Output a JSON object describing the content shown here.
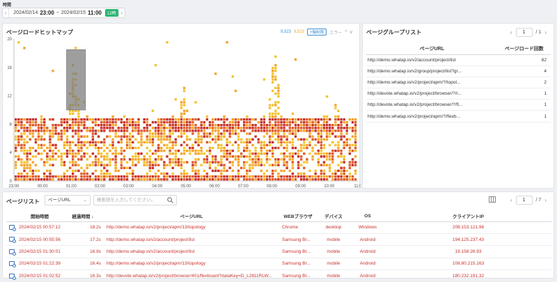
{
  "time": {
    "label": "時間",
    "start_date": "2024/02/14",
    "start_time": "23:00",
    "separator": "~",
    "end_date": "2024/02/15",
    "end_time": "11:00",
    "badge": "12時",
    "prev_icon": "chevron-left-icon",
    "next_icon": "chevron-right-icon"
  },
  "heatmap": {
    "title": "ページロードヒットマップ",
    "count_blue": "9,523",
    "count_orange": "9,523",
    "y_button": "Y軸制限",
    "error_label": "エラー",
    "colors": {
      "blue": "#3b8fd6",
      "low": "#f4c430",
      "mid": "#f4a52a",
      "high": "#e05a2b",
      "max": "#c8312c",
      "selection": "#7d7d7d"
    }
  },
  "chart_data": {
    "type": "heatmap",
    "title": "ページロードヒットマップ",
    "x_ticks": [
      "23:00",
      "00:00",
      "01:00",
      "02:00",
      "03:00",
      "04:00",
      "05:00",
      "06:00",
      "07:00",
      "08:00",
      "09:00",
      "10:00",
      "11:0"
    ],
    "y_ticks": [
      0,
      4,
      8,
      12,
      16,
      20
    ],
    "ylim": [
      0,
      20
    ],
    "xlim_hours": [
      0,
      12
    ],
    "selection": {
      "x_start": "00:50",
      "x_end": "01:30",
      "y_min": 10,
      "y_max": 18.5
    },
    "spikes": [
      {
        "center": "01:05",
        "y_max": 18
      },
      {
        "center": "04:55",
        "y_max": 14
      },
      {
        "center": "08:05",
        "y_max": 19
      },
      {
        "center": "10:15",
        "y_max": 12
      }
    ],
    "dense_band": [
      0,
      9
    ]
  },
  "group": {
    "title": "ページグループリスト",
    "page": "1",
    "total": "/ 1",
    "headers": [
      "ページURL",
      "ページロード回数"
    ],
    "rows": [
      {
        "url": "http://demo.whatap.io/v2/account/project/list",
        "count": "82"
      },
      {
        "url": "http://demo.whatap.io/v2/group/project/list?gr...",
        "count": "4"
      },
      {
        "url": "http://demo.whatap.io/v2/project/apm/?/topol...",
        "count": "2"
      },
      {
        "url": "http://devote.whatap.io/v2/project/browser/?/r...",
        "count": "1"
      },
      {
        "url": "http://devote.whatap.io/v2/project/browser/?/fl...",
        "count": "1"
      },
      {
        "url": "http://demo.whatap.io/v2/project/apm/?/flexb...",
        "count": "1"
      }
    ]
  },
  "list": {
    "title": "ページリスト",
    "select_value": "ページURL",
    "search_placeholder": "検索語を入力してください。",
    "page": "1",
    "total": "/ 7",
    "headers": {
      "start": "開始時間",
      "elapsed": "経過時間 ↓",
      "url": "ページURL",
      "browser": "WEBブラウザ",
      "device": "デバイス",
      "os": "OS",
      "ip": "クライアントIP"
    },
    "rows": [
      {
        "start": "2024/02/15 00:57:12",
        "elapsed": "18.2s",
        "url": "http://demo.whatap.io/v2/project/apm/13/topology",
        "browser": "Chrome",
        "device": "desktop",
        "os": "Windows",
        "ip": "208.153.121.96"
      },
      {
        "start": "2024/02/15 00:55:56",
        "elapsed": "17.2s",
        "url": "http://demo.whatap.io/v2/account/project/list",
        "browser": "Samsung Br...",
        "device": "mobile",
        "os": "Android",
        "ip": "194.125.237.43"
      },
      {
        "start": "2024/02/15 01:30:01",
        "elapsed": "16.9s",
        "url": "http://demo.whatap.io/v2/account/project/list",
        "browser": "Samsung Br...",
        "device": "mobile",
        "os": "Android",
        "ip": "19.158.26.93"
      },
      {
        "start": "2024/02/15 01:22:39",
        "elapsed": "16.4s",
        "url": "http://demo.whatap.io/v2/project/apm/13/topology",
        "browser": "Samsung Br...",
        "device": "mobile",
        "os": "Android",
        "ip": "108.80.215.163"
      },
      {
        "start": "2024/02/15 01:02:52",
        "elapsed": "16.3s",
        "url": "http://devote.whatap.io/v2/project/browser/401/flexboard?dataKey=D_L2811RLW...",
        "browser": "Samsung Br...",
        "device": "mobile",
        "os": "Android",
        "ip": "180.232.191.32"
      }
    ]
  }
}
